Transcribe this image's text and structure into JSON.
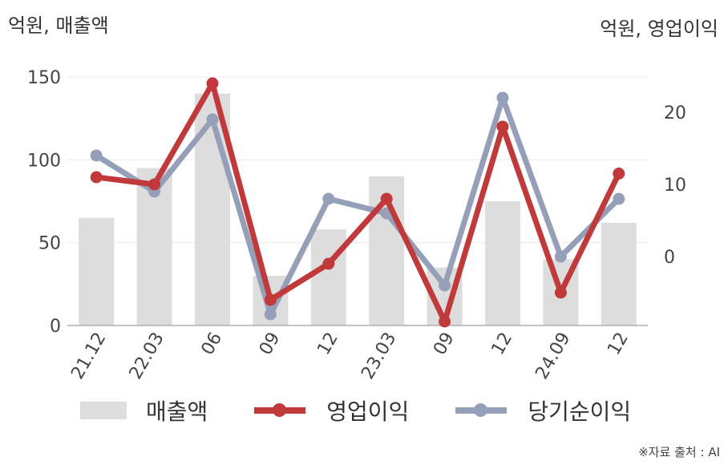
{
  "chart_data": {
    "type": "bar+line",
    "left_axis_title": "억원, 매출액",
    "right_axis_title": "억원, 영업이익",
    "categories": [
      "21.12",
      "22.03",
      "06",
      "09",
      "12",
      "23.03",
      "09",
      "12",
      "24.09",
      "12"
    ],
    "left_axis": {
      "range": [
        0,
        150
      ],
      "ticks": [
        "150",
        "100",
        "50",
        "0"
      ]
    },
    "right_axis": {
      "range": [
        -10,
        25
      ],
      "ticks": [
        "20",
        "10",
        "0"
      ]
    },
    "series": [
      {
        "name": "매출액",
        "type": "bar",
        "axis": "left",
        "color": "#dddddd",
        "values": [
          65,
          95,
          140,
          30,
          58,
          90,
          35,
          75,
          40,
          62
        ]
      },
      {
        "name": "영업이익",
        "type": "line",
        "axis": "right",
        "color": "#c0393b",
        "values": [
          11,
          10,
          24,
          -6,
          -1,
          8,
          -9,
          18,
          -5,
          11.5
        ]
      },
      {
        "name": "당기순이익",
        "type": "line",
        "axis": "right",
        "color": "#95a0b8",
        "values": [
          14,
          9,
          19,
          -8,
          8,
          6,
          -4,
          22,
          0,
          8
        ]
      }
    ],
    "grid": true,
    "legend_position": "bottom"
  },
  "source": "※자료 출처 : AI"
}
